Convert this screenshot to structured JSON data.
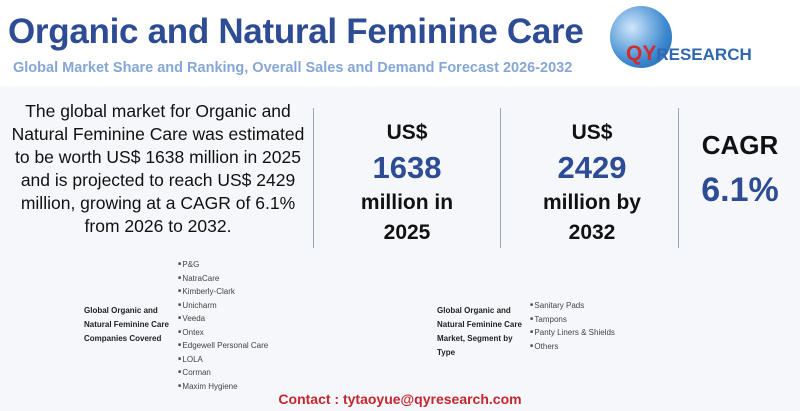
{
  "header": {
    "title": "Organic and Natural Feminine Care",
    "subtitle": "Global Market Share and Ranking, Overall Sales and Demand Forecast 2026-2032",
    "logo_text": "QYRESEARCH"
  },
  "description": "The global market for Organic and Natural Feminine Care was estimated to be worth US$ 1638 million in 2025 and is projected to reach US$ 2429 million, growing at a CAGR of 6.1% from 2026 to 2032.",
  "stats": [
    {
      "top": "US$",
      "value": "1638",
      "bottom": "million in 2025"
    },
    {
      "top": "US$",
      "value": "2429",
      "bottom": "million by 2032"
    }
  ],
  "cagr": {
    "label": "CAGR",
    "value": "6.1%"
  },
  "companies": {
    "label": "Global Organic and Natural Feminine Care Companies Covered",
    "items": [
      "P&G",
      "NatraCare",
      "Kimberly-Clark",
      "Unicharm",
      "Veeda",
      "Ontex",
      "Edgewell Personal Care",
      "LOLA",
      "Corman",
      "Maxim Hygiene"
    ]
  },
  "types": {
    "label": "Global Organic and Natural Feminine Care Market, Segment by Type",
    "items": [
      "Sanitary Pads",
      "Tampons",
      "Panty Liners & Shields",
      "Others"
    ]
  },
  "contact": "Contact : tytaoyue@qyresearch.com",
  "colors": {
    "title": "#2d4c93",
    "subtitle": "#86a6d6",
    "contact": "#c4262e"
  }
}
